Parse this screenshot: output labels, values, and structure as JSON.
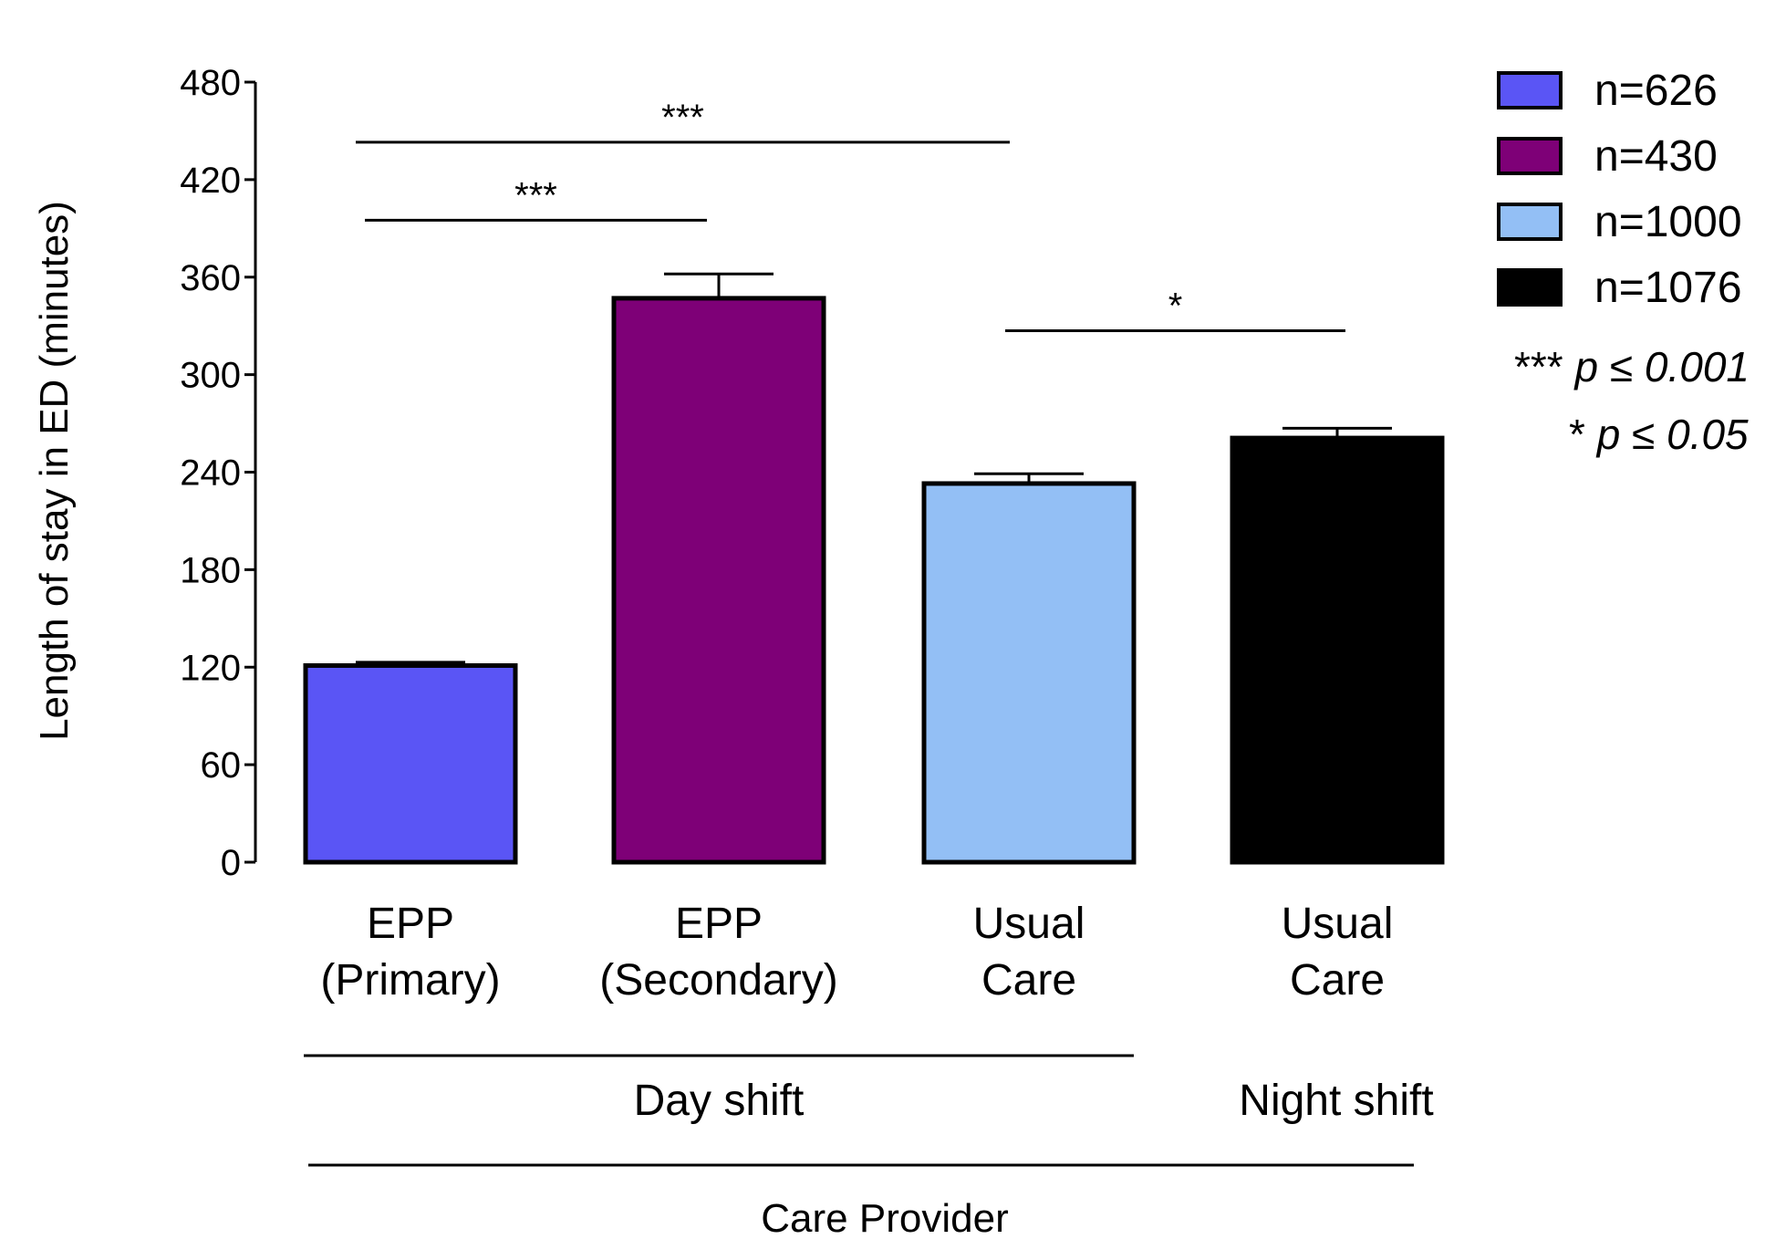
{
  "chart_data": {
    "type": "bar",
    "ylabel": "Length of stay in ED (minutes)",
    "xlabel": "Care Provider",
    "ylim": [
      0,
      480
    ],
    "yticks": [
      0,
      60,
      120,
      180,
      240,
      300,
      360,
      420,
      480
    ],
    "grid": false,
    "legend_position": "top-right",
    "categories": [
      {
        "line1": "EPP",
        "line2": "(Primary)"
      },
      {
        "line1": "EPP",
        "line2": "(Secondary)"
      },
      {
        "line1": "Usual",
        "line2": "Care"
      },
      {
        "line1": "Usual",
        "line2": "Care"
      }
    ],
    "values": [
      121,
      347,
      233,
      261
    ],
    "errors": [
      2,
      15,
      6,
      6
    ],
    "colors": [
      "#5a55f5",
      "#7e0077",
      "#93bff5",
      "#000000"
    ],
    "groups": [
      {
        "label": "Day shift",
        "from": 0,
        "to": 2
      },
      {
        "label": "Night shift",
        "from": 3,
        "to": 3
      }
    ],
    "legend": [
      "n=626",
      "n=430",
      "n=1000",
      "n=1076"
    ],
    "significance": [
      {
        "from": 0,
        "to": 2,
        "label": "***",
        "level": 443
      },
      {
        "from": 0,
        "to": 1,
        "label": "***",
        "level": 395
      },
      {
        "from": 2,
        "to": 3,
        "label": "*",
        "level": 327
      }
    ],
    "notes": [
      {
        "stars": "***",
        "text": "p ≤ 0.001"
      },
      {
        "stars": "*",
        "text": "p ≤ 0.05"
      }
    ]
  }
}
